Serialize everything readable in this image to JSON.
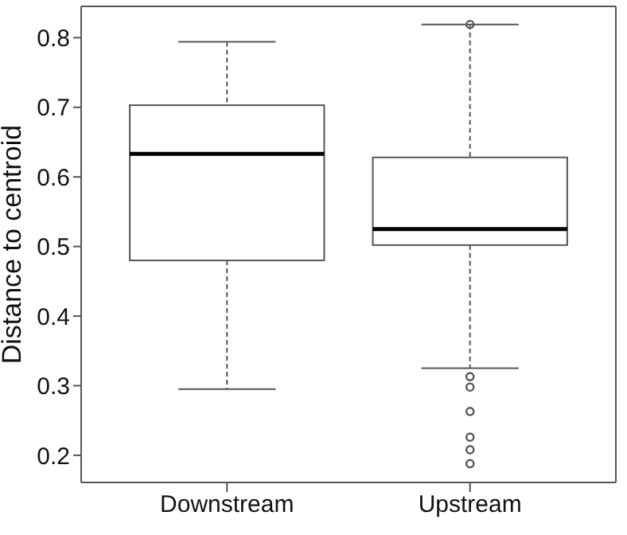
{
  "chart_data": {
    "type": "box",
    "ylabel": "Distance to centroid",
    "categories": [
      "Downstream",
      "Upstream"
    ],
    "boxes": [
      {
        "low": 0.295,
        "q1": 0.48,
        "median": 0.633,
        "q3": 0.703,
        "high": 0.794
      },
      {
        "low": 0.325,
        "q1": 0.502,
        "median": 0.525,
        "q3": 0.628,
        "high": 0.819,
        "outliers": [
          0.819,
          0.313,
          0.298,
          0.263,
          0.226,
          0.208,
          0.188
        ]
      }
    ],
    "ylim": [
      0.161,
      0.845
    ],
    "yticks": [
      0.2,
      0.3,
      0.4,
      0.5,
      0.6,
      0.7,
      0.8
    ],
    "color": "#555555",
    "grid": false,
    "legend": false
  }
}
